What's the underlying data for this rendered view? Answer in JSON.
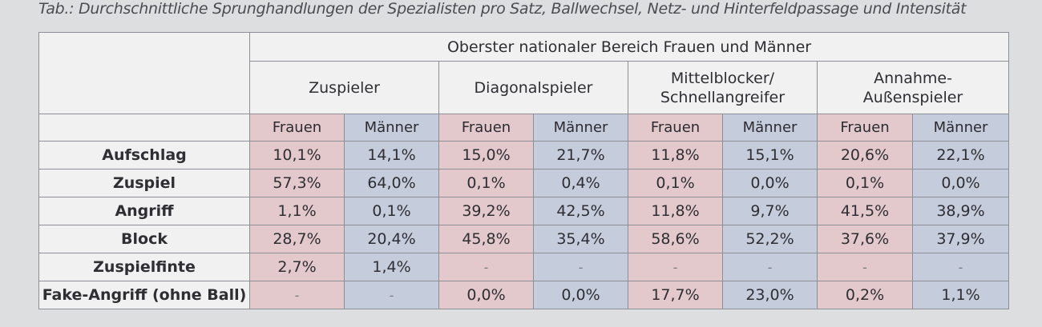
{
  "caption": "Tab.: Durchschnittliche Sprunghandlungen der Spezialisten pro Satz, Ballwechsel, Netz- und Hinterfeldpassage und Intensität",
  "table": {
    "super_header": "Oberster nationaler Bereich Frauen und Männer",
    "groups": {
      "zuspieler": "Zuspieler",
      "diagonal": "Diagonalspieler",
      "mittel_line1": "Mittelblocker/",
      "mittel_line2": "Schnellangreifer",
      "annahme_line1": "Annahme-",
      "annahme_line2": "Außenspieler"
    },
    "genders": {
      "f": "Frauen",
      "m": "Männer"
    },
    "rows": [
      {
        "label": "Aufschlag",
        "values": [
          "10,1%",
          "14,1%",
          "15,0%",
          "21,7%",
          "11,8%",
          "15,1%",
          "20,6%",
          "22,1%"
        ]
      },
      {
        "label": "Zuspiel",
        "values": [
          "57,3%",
          "64,0%",
          "0,1%",
          "0,4%",
          "0,1%",
          "0,0%",
          "0,1%",
          "0,0%"
        ]
      },
      {
        "label": "Angriff",
        "values": [
          "1,1%",
          "0,1%",
          "39,2%",
          "42,5%",
          "11,8%",
          "9,7%",
          "41,5%",
          "38,9%"
        ]
      },
      {
        "label": "Block",
        "values": [
          "28,7%",
          "20,4%",
          "45,8%",
          "35,4%",
          "58,6%",
          "52,2%",
          "37,6%",
          "37,9%"
        ]
      },
      {
        "label": "Zuspielfinte",
        "values": [
          "2,7%",
          "1,4%",
          "-",
          "-",
          "-",
          "-",
          "-",
          "-"
        ]
      },
      {
        "label": "Fake-Angriff (ohne Ball)",
        "values": [
          "-",
          "-",
          "0,0%",
          "0,0%",
          "17,7%",
          "23,0%",
          "0,2%",
          "1,1%"
        ]
      }
    ]
  }
}
